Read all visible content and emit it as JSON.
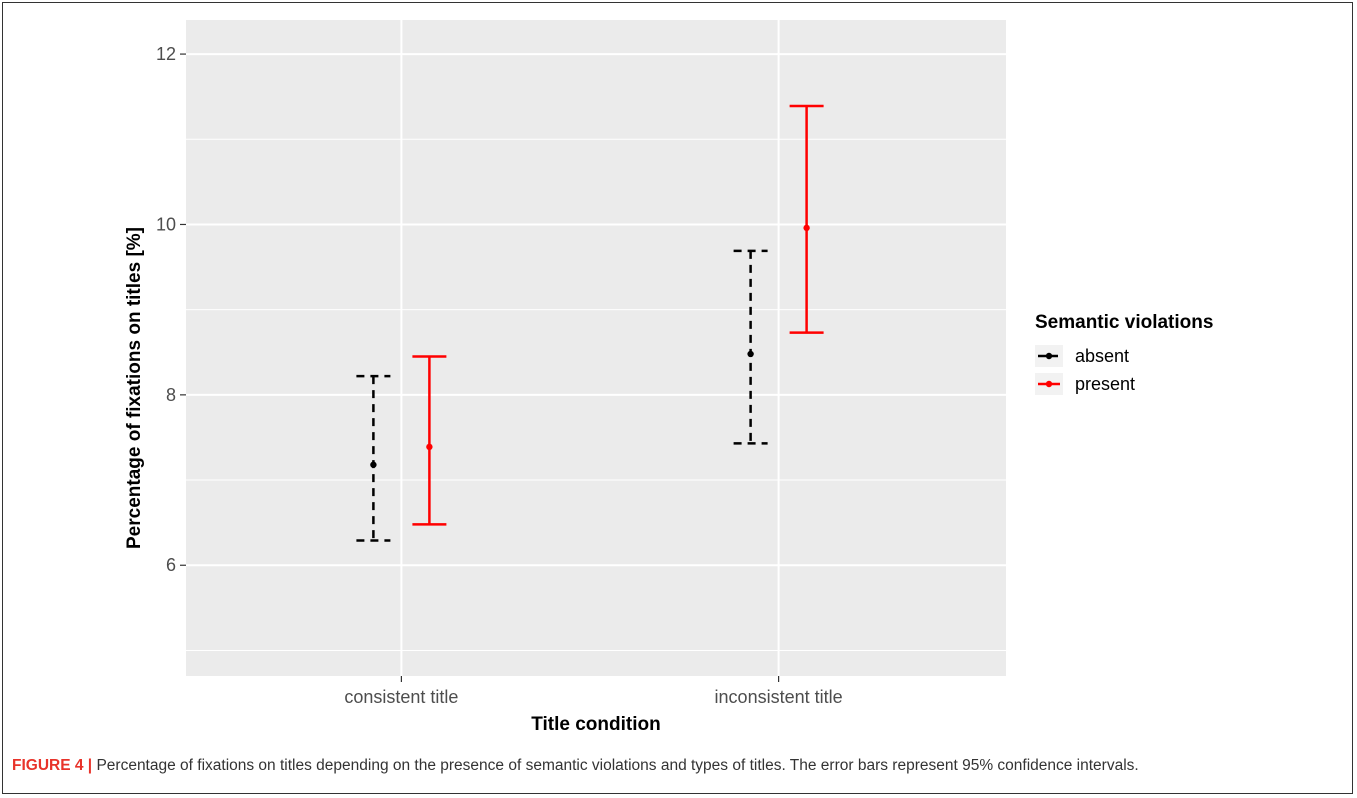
{
  "chart_data": {
    "type": "errorbar",
    "categories": [
      "consistent title",
      "inconsistent title"
    ],
    "xlabel": "Title condition",
    "ylabel": "Percentage of fixations on titles [%]",
    "ylim": [
      4.7,
      12.4
    ],
    "yticks": [
      6,
      8,
      10,
      12
    ],
    "grid": true,
    "legend": {
      "title": "Semantic violations",
      "placement": "right"
    },
    "series": [
      {
        "name": "absent",
        "color": "#000000",
        "dashed": true,
        "values": [
          7.18,
          8.48
        ],
        "lower": [
          6.29,
          7.43
        ],
        "upper": [
          8.22,
          9.69
        ]
      },
      {
        "name": "present",
        "color": "#ff0000",
        "dashed": false,
        "values": [
          7.39,
          9.96
        ],
        "lower": [
          6.48,
          8.73
        ],
        "upper": [
          8.45,
          11.39
        ]
      }
    ]
  },
  "caption": {
    "label": "FIGURE 4 |",
    "text": " Percentage of fixations on titles depending on the presence of semantic violations and types of titles. The error bars represent 95% confidence intervals."
  }
}
